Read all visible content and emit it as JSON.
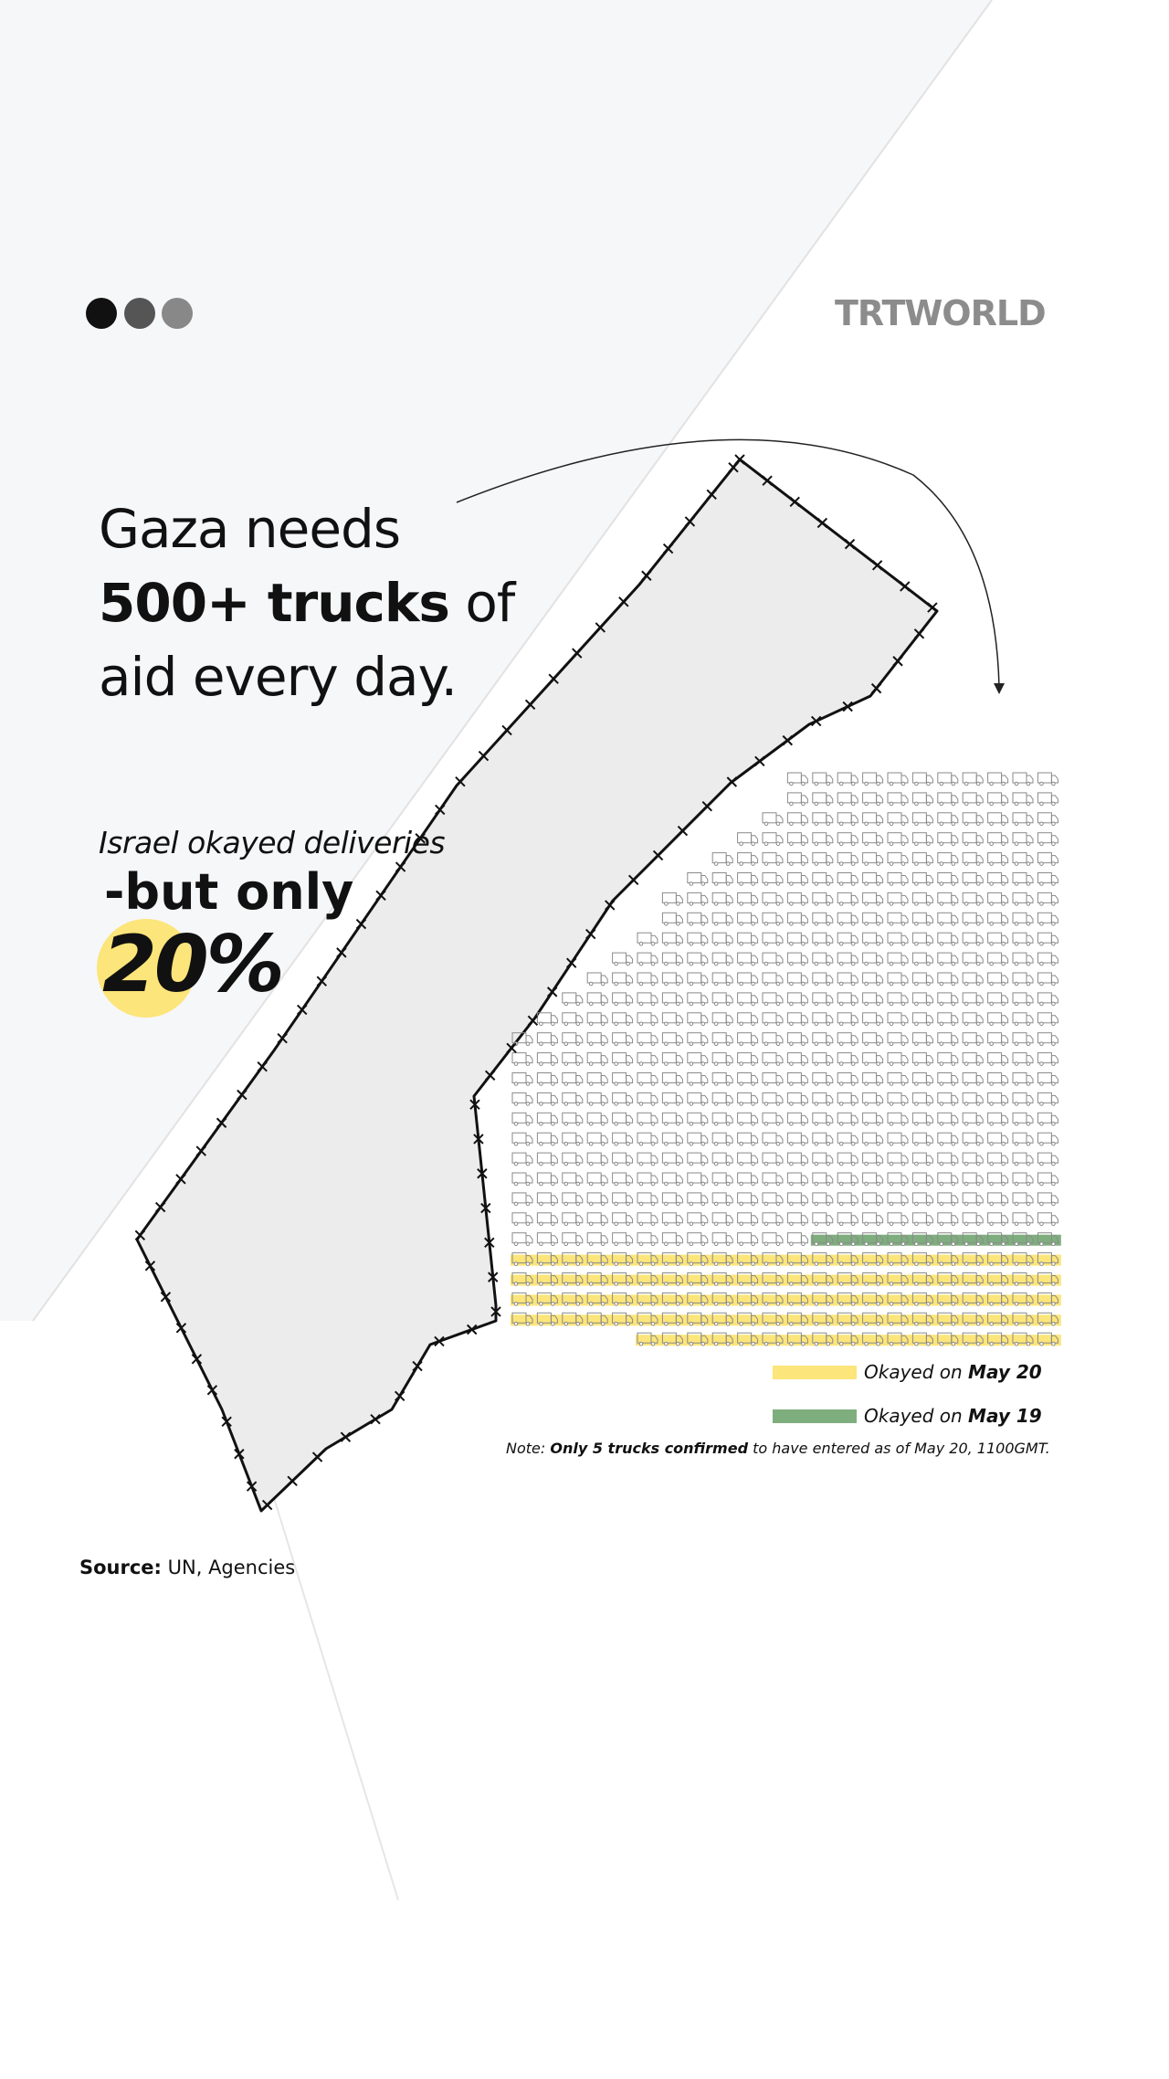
{
  "header": {
    "logo": "TRTWORLD"
  },
  "headline": {
    "line1": "Gaza needs",
    "line2_bold": "500+ trucks",
    "line2_rest": "of",
    "line3": "aid every day."
  },
  "subhead": {
    "intro": "Israel okayed deliveries",
    "emphasis": "-but only",
    "share": "20%"
  },
  "legend": [
    {
      "prefix": "Okayed on",
      "date": "May 20"
    },
    {
      "prefix": "Okayed on",
      "date": "May 19"
    }
  ],
  "note": {
    "label": "Note:",
    "bold": "Only 5 trucks confirmed",
    "rest": "to have entered as of May 20, 1100GMT."
  },
  "source": {
    "label": "Source:",
    "text": "UN, Agencies"
  }
}
